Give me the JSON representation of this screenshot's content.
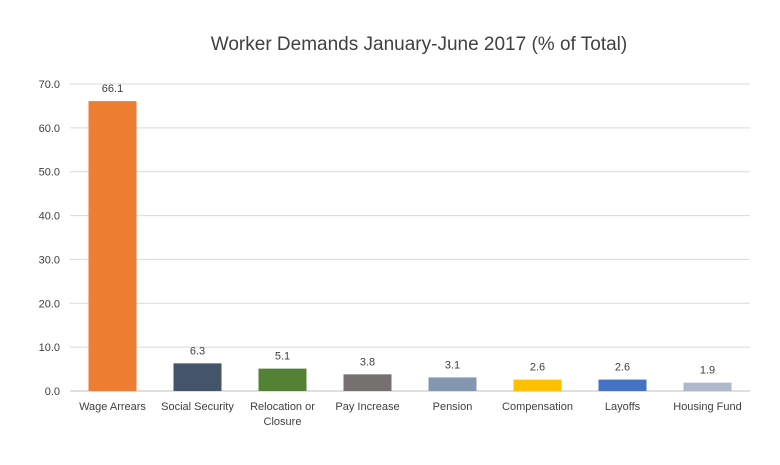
{
  "chart_data": {
    "type": "bar",
    "title": "Worker Demands January-June 2017 (% of Total)",
    "xlabel": "",
    "ylabel": "",
    "ylim": [
      0,
      70
    ],
    "y_ticks": [
      "0.0",
      "10.0",
      "20.0",
      "30.0",
      "40.0",
      "50.0",
      "60.0",
      "70.0"
    ],
    "grid": true,
    "legend": "none",
    "categories": [
      [
        "Wage Arrears"
      ],
      [
        "Social Security"
      ],
      [
        "Relocation or",
        "Closure"
      ],
      [
        "Pay Increase"
      ],
      [
        "Pension"
      ],
      [
        "Compensation"
      ],
      [
        "Layoffs"
      ],
      [
        "Housing Fund"
      ]
    ],
    "values": [
      66.1,
      6.3,
      5.1,
      3.8,
      3.1,
      2.6,
      2.6,
      1.9
    ],
    "value_labels": [
      "66.1",
      "6.3",
      "5.1",
      "3.8",
      "3.1",
      "2.6",
      "2.6",
      "1.9"
    ],
    "colors": [
      "#ED7D31",
      "#44546A",
      "#548235",
      "#767171",
      "#8497B0",
      "#FFC000",
      "#4472C4",
      "#ADB9CA"
    ]
  }
}
